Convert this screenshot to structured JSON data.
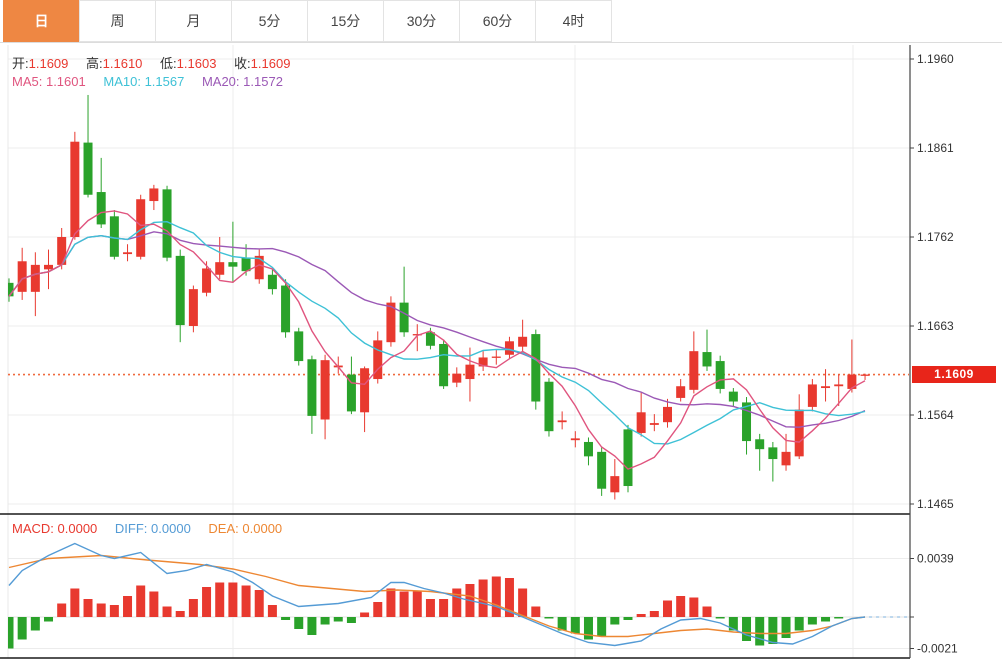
{
  "tabs": {
    "items": [
      {
        "name": "tab-day",
        "label": "日",
        "active": true
      },
      {
        "name": "tab-week",
        "label": "周",
        "active": false
      },
      {
        "name": "tab-month",
        "label": "月",
        "active": false
      },
      {
        "name": "tab-5min",
        "label": "5分",
        "active": false
      },
      {
        "name": "tab-15min",
        "label": "15分",
        "active": false
      },
      {
        "name": "tab-30min",
        "label": "30分",
        "active": false
      },
      {
        "name": "tab-60min",
        "label": "60分",
        "active": false
      },
      {
        "name": "tab-4hour",
        "label": "4时",
        "active": false
      }
    ]
  },
  "ohlc_legend": {
    "open_label": "开:",
    "open": "1.1609",
    "high_label": "高:",
    "high": "1.1610",
    "low_label": "低:",
    "low": "1.1603",
    "close_label": "收:",
    "close": "1.1609"
  },
  "ma_legend": {
    "ma5_label": "MA5:",
    "ma5": "1.1601",
    "ma10_label": "MA10:",
    "ma10": "1.1567",
    "ma20_label": "MA20:",
    "ma20": "1.1572"
  },
  "macd_legend": {
    "macd_label": "MACD:",
    "macd": "0.0000",
    "diff_label": "DIFF:",
    "diff": "0.0000",
    "dea_label": "DEA:",
    "dea": "0.0000"
  },
  "price_badge": {
    "value": "1.1609"
  },
  "colors": {
    "up": "#e8392f",
    "down": "#2aa22a",
    "ma5": "#e0557f",
    "ma10": "#3ec1d6",
    "ma20": "#9b59b6",
    "diff": "#549bd5",
    "dea": "#ed8733",
    "grid": "#ececec",
    "axis": "#444",
    "divider": "#1a1a1a",
    "dotted_price": "#ef6a3f",
    "badge": "#e8251a",
    "tab_active": "#ee8743",
    "zero_dash": "#a8cbe8",
    "label_text": "#333"
  },
  "chart_data": [
    {
      "type": "candlestick",
      "title": "",
      "ylabel": "",
      "grid": true,
      "y_ticks": [
        1.196,
        1.1861,
        1.1762,
        1.1663,
        1.1564,
        1.1465
      ],
      "current_price": 1.1609,
      "ma_periods": [
        5,
        10,
        20
      ],
      "legend": [
        "MA5",
        "MA10",
        "MA20"
      ],
      "candles_ohlc": [
        [
          1.1711,
          1.1716,
          1.169,
          1.1696
        ],
        [
          1.1701,
          1.175,
          1.1692,
          1.1735
        ],
        [
          1.1701,
          1.1745,
          1.1674,
          1.1731
        ],
        [
          1.1726,
          1.1748,
          1.1704,
          1.1731
        ],
        [
          1.1731,
          1.1772,
          1.1726,
          1.1762
        ],
        [
          1.1762,
          1.1879,
          1.1759,
          1.1868
        ],
        [
          1.1867,
          1.192,
          1.1806,
          1.1809
        ],
        [
          1.1812,
          1.185,
          1.1772,
          1.1776
        ],
        [
          1.1785,
          1.1792,
          1.1737,
          1.174
        ],
        [
          1.1743,
          1.1754,
          1.1735,
          1.1745
        ],
        [
          1.174,
          1.1809,
          1.1737,
          1.1804
        ],
        [
          1.1802,
          1.182,
          1.1792,
          1.1816
        ],
        [
          1.1815,
          1.1819,
          1.1735,
          1.1739
        ],
        [
          1.1741,
          1.1748,
          1.1645,
          1.1664
        ],
        [
          1.1663,
          1.1708,
          1.1656,
          1.1704
        ],
        [
          1.17,
          1.1735,
          1.1696,
          1.1727
        ],
        [
          1.172,
          1.1762,
          1.1715,
          1.1734
        ],
        [
          1.1734,
          1.1779,
          1.1711,
          1.1729
        ],
        [
          1.1739,
          1.1754,
          1.1719,
          1.1724
        ],
        [
          1.1715,
          1.1748,
          1.171,
          1.1741
        ],
        [
          1.172,
          1.1726,
          1.1698,
          1.1704
        ],
        [
          1.1708,
          1.1715,
          1.165,
          1.1656
        ],
        [
          1.1657,
          1.1661,
          1.1619,
          1.1624
        ],
        [
          1.1626,
          1.163,
          1.1543,
          1.1563
        ],
        [
          1.1559,
          1.1631,
          1.1537,
          1.1625
        ],
        [
          1.1617,
          1.1629,
          1.161,
          1.1619
        ],
        [
          1.1609,
          1.1629,
          1.1565,
          1.1568
        ],
        [
          1.1567,
          1.1618,
          1.1545,
          1.1616
        ],
        [
          1.1604,
          1.1657,
          1.1599,
          1.1647
        ],
        [
          1.1645,
          1.1696,
          1.164,
          1.1689
        ],
        [
          1.1689,
          1.1729,
          1.1651,
          1.1656
        ],
        [
          1.1653,
          1.1665,
          1.1635,
          1.1654
        ],
        [
          1.1656,
          1.1661,
          1.1637,
          1.1641
        ],
        [
          1.1643,
          1.1648,
          1.1593,
          1.1596
        ],
        [
          1.16,
          1.1617,
          1.1595,
          1.161
        ],
        [
          1.1604,
          1.1639,
          1.1579,
          1.162
        ],
        [
          1.1618,
          1.1635,
          1.1613,
          1.1628
        ],
        [
          1.1628,
          1.1637,
          1.162,
          1.1629
        ],
        [
          1.1631,
          1.1651,
          1.1626,
          1.1646
        ],
        [
          1.164,
          1.167,
          1.1635,
          1.1651
        ],
        [
          1.1654,
          1.1659,
          1.157,
          1.1579
        ],
        [
          1.1601,
          1.1605,
          1.154,
          1.1546
        ],
        [
          1.1556,
          1.1568,
          1.1548,
          1.1558
        ],
        [
          1.1536,
          1.1546,
          1.1528,
          1.1538
        ],
        [
          1.1534,
          1.1539,
          1.1508,
          1.1518
        ],
        [
          1.1523,
          1.1528,
          1.1474,
          1.1482
        ],
        [
          1.1478,
          1.1515,
          1.147,
          1.1496
        ],
        [
          1.1548,
          1.1553,
          1.1478,
          1.1485
        ],
        [
          1.1544,
          1.1589,
          1.154,
          1.1567
        ],
        [
          1.1553,
          1.1565,
          1.1546,
          1.1555
        ],
        [
          1.1556,
          1.1582,
          1.155,
          1.1573
        ],
        [
          1.1583,
          1.1604,
          1.1579,
          1.1596
        ],
        [
          1.1592,
          1.1657,
          1.1588,
          1.1635
        ],
        [
          1.1634,
          1.1659,
          1.1613,
          1.1618
        ],
        [
          1.1624,
          1.163,
          1.1588,
          1.1593
        ],
        [
          1.159,
          1.1594,
          1.1574,
          1.1579
        ],
        [
          1.1578,
          1.1584,
          1.152,
          1.1535
        ],
        [
          1.1537,
          1.1543,
          1.1502,
          1.1526
        ],
        [
          1.1528,
          1.1534,
          1.149,
          1.1515
        ],
        [
          1.1508,
          1.1543,
          1.1502,
          1.1523
        ],
        [
          1.1518,
          1.1587,
          1.1515,
          1.157
        ],
        [
          1.1573,
          1.1604,
          1.1568,
          1.1598
        ],
        [
          1.1594,
          1.1615,
          1.1579,
          1.1596
        ],
        [
          1.1596,
          1.1609,
          1.1574,
          1.1598
        ],
        [
          1.1593,
          1.1648,
          1.1589,
          1.1609
        ],
        [
          1.1609,
          1.161,
          1.1603,
          1.1609
        ]
      ]
    },
    {
      "type": "bar",
      "title": "MACD",
      "grid": true,
      "y_ticks": [
        0.0039,
        -0.0021
      ],
      "histogram": [
        -0.0021,
        -0.0015,
        -0.0009,
        -0.0003,
        0.0009,
        0.0019,
        0.0012,
        0.0009,
        0.0008,
        0.0014,
        0.0021,
        0.0017,
        0.0007,
        0.0004,
        0.0012,
        0.002,
        0.0023,
        0.0023,
        0.0021,
        0.0018,
        0.0008,
        -0.0002,
        -0.0008,
        -0.0012,
        -0.0005,
        -0.0003,
        -0.0004,
        0.0003,
        0.001,
        0.0019,
        0.0017,
        0.0017,
        0.0012,
        0.0012,
        0.0019,
        0.0022,
        0.0025,
        0.0027,
        0.0026,
        0.0019,
        0.0007,
        -0.0001,
        -0.0009,
        -0.0011,
        -0.0015,
        -0.0013,
        -0.0005,
        -0.0002,
        0.0002,
        0.0004,
        0.0011,
        0.0014,
        0.0013,
        0.0007,
        -0.0001,
        -0.0009,
        -0.0016,
        -0.0019,
        -0.0018,
        -0.0014,
        -0.0009,
        -0.0005,
        -0.0003,
        -0.0001,
        0.0,
        0.0
      ],
      "diff_points": [
        [
          0,
          0.0021
        ],
        [
          1,
          0.0031
        ],
        [
          3,
          0.0041
        ],
        [
          5,
          0.0049
        ],
        [
          7,
          0.0041
        ],
        [
          8,
          0.0039
        ],
        [
          10,
          0.0043
        ],
        [
          12,
          0.0029
        ],
        [
          13.5,
          0.0031
        ],
        [
          15,
          0.0035
        ],
        [
          17,
          0.003
        ],
        [
          18.5,
          0.0023
        ],
        [
          20,
          0.0014
        ],
        [
          22,
          0.0007
        ],
        [
          25,
          0.0009
        ],
        [
          27.5,
          0.0013
        ],
        [
          29,
          0.0023
        ],
        [
          30,
          0.0023
        ],
        [
          31.5,
          0.0019
        ],
        [
          33,
          0.0016
        ],
        [
          34.5,
          0.0012
        ],
        [
          37,
          0.0007
        ],
        [
          39,
          0.0
        ],
        [
          42,
          -0.0011
        ],
        [
          44,
          -0.0017
        ],
        [
          46,
          -0.0019
        ],
        [
          48,
          -0.0016
        ],
        [
          49.5,
          -0.0008
        ],
        [
          51,
          -0.0002
        ],
        [
          52.5,
          -0.0001
        ],
        [
          54,
          -0.0004
        ],
        [
          56,
          -0.0012
        ],
        [
          58,
          -0.0017
        ],
        [
          59.5,
          -0.0018
        ],
        [
          61,
          -0.0013
        ],
        [
          62.5,
          -0.0006
        ],
        [
          64,
          -0.0001
        ],
        [
          65,
          0.0
        ]
      ],
      "dea_points": [
        [
          0,
          0.0033
        ],
        [
          3,
          0.0039
        ],
        [
          7,
          0.0041
        ],
        [
          10.5,
          0.0038
        ],
        [
          14.5,
          0.0035
        ],
        [
          17,
          0.0032
        ],
        [
          19.5,
          0.0027
        ],
        [
          22,
          0.0021
        ],
        [
          24.5,
          0.0019
        ],
        [
          27,
          0.0017
        ],
        [
          29.5,
          0.0018
        ],
        [
          32,
          0.0017
        ],
        [
          35,
          0.0014
        ],
        [
          37,
          0.0008
        ],
        [
          39,
          0.0001
        ],
        [
          41,
          -0.0006
        ],
        [
          43,
          -0.0011
        ],
        [
          45,
          -0.0013
        ],
        [
          47,
          -0.0013
        ],
        [
          49,
          -0.0011
        ],
        [
          51,
          -0.0009
        ],
        [
          53,
          -0.0008
        ],
        [
          55,
          -0.001
        ],
        [
          57,
          -0.0011
        ],
        [
          59,
          -0.0011
        ],
        [
          61,
          -0.0009
        ],
        [
          62.5,
          -0.0006
        ],
        [
          64,
          -0.0001
        ],
        [
          65,
          0.0
        ]
      ],
      "zero_dash_extension": true
    }
  ]
}
